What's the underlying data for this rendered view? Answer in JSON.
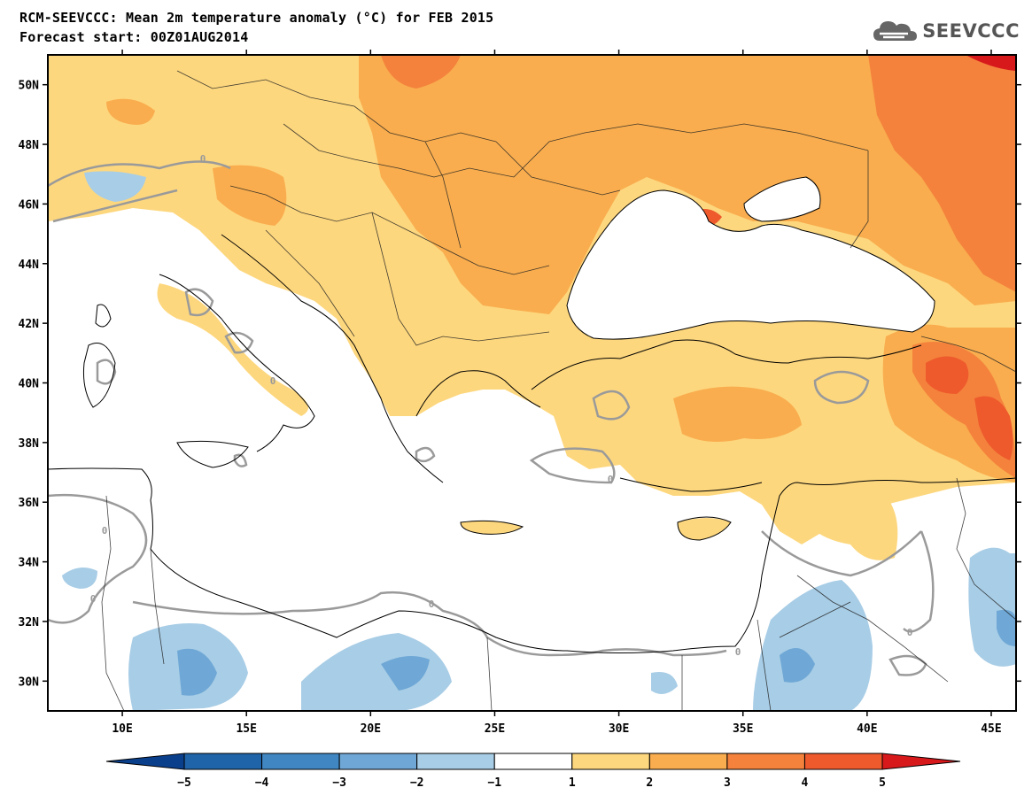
{
  "header": {
    "title": "RCM-SEEVCCC: Mean 2m temperature anomaly (°C) for FEB 2015",
    "subtitle": "Forecast start: 00Z01AUG2014"
  },
  "logo": {
    "text": "SEEVCCC",
    "icon": "cloud-logo-icon"
  },
  "map": {
    "variable": "Mean 2m temperature anomaly",
    "unit": "°C",
    "lat_range": [
      29,
      51
    ],
    "lon_range": [
      7,
      46
    ],
    "lat_labels": [
      "50N",
      "48N",
      "46N",
      "44N",
      "42N",
      "40N",
      "38N",
      "36N",
      "34N",
      "32N",
      "30N"
    ],
    "lat_values": [
      50,
      48,
      46,
      44,
      42,
      40,
      38,
      36,
      34,
      32,
      30
    ],
    "lon_labels": [
      "10E",
      "15E",
      "20E",
      "25E",
      "30E",
      "35E",
      "40E",
      "45E"
    ],
    "lon_values": [
      10,
      15,
      20,
      25,
      30,
      35,
      40,
      45
    ],
    "zero_contour_label": "0"
  },
  "colorbar": {
    "labels": [
      "−5",
      "−4",
      "−3",
      "−2",
      "−1",
      "1",
      "2",
      "3",
      "4",
      "5"
    ],
    "colors": [
      "#0a3f8c",
      "#1f63a8",
      "#3f86c2",
      "#6fa8d6",
      "#a8cde6",
      "#ffffff",
      "#fdd77e",
      "#f9ad4e",
      "#f4823c",
      "#ee5a2c",
      "#d7191c"
    ]
  }
}
